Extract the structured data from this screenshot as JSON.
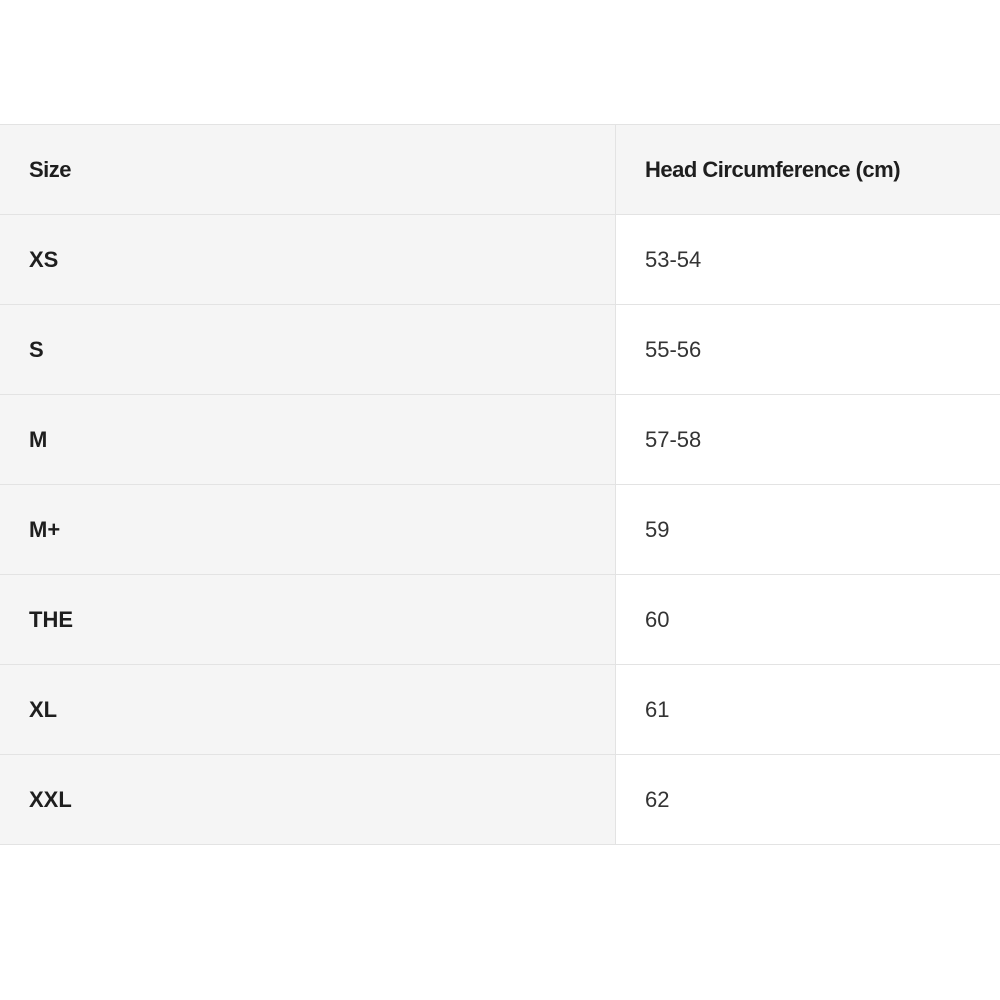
{
  "table": {
    "headers": [
      "Size",
      "Head Circumference (cm)"
    ],
    "rows": [
      [
        "XS",
        "53-54"
      ],
      [
        "S",
        "55-56"
      ],
      [
        "M",
        "57-58"
      ],
      [
        "M+",
        "59"
      ],
      [
        "THE",
        "60"
      ],
      [
        "XL",
        "61"
      ],
      [
        "XXL",
        "62"
      ]
    ]
  },
  "colors": {
    "header_bg": "#f5f5f5",
    "size_column_bg": "#f5f5f5",
    "border": "#e3e3e3"
  }
}
